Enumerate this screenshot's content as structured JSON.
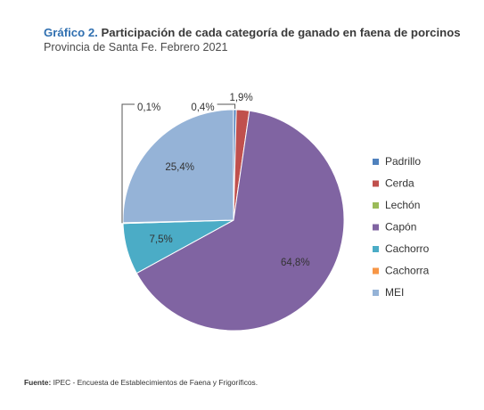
{
  "title": {
    "prefix": "Gráfico 2.",
    "text": "Participación de cada categoría de ganado en faena de porcinos",
    "subtitle": "Provincia de Santa Fe. Febrero 2021"
  },
  "source": {
    "label": "Fuente:",
    "text": "IPEC - Encuesta de Establecimientos de Faena y Frigoríficos."
  },
  "chart_data": {
    "type": "pie",
    "legend_position": "right",
    "slices": [
      {
        "name": "Padrillo",
        "value": 0.4,
        "label": "0,4%",
        "color": "#4f81bd"
      },
      {
        "name": "Cerda",
        "value": 1.9,
        "label": "1,9%",
        "color": "#c0504d"
      },
      {
        "name": "Lechón",
        "value": 0.0,
        "label": "",
        "color": "#9bbb59"
      },
      {
        "name": "Capón",
        "value": 64.8,
        "label": "64,8%",
        "color": "#8064a2"
      },
      {
        "name": "Cachorro",
        "value": 7.5,
        "label": "7,5%",
        "color": "#4bacc6"
      },
      {
        "name": "Cachorra",
        "value": 0.1,
        "label": "0,1%",
        "color": "#f79646"
      },
      {
        "name": "MEI",
        "value": 25.4,
        "label": "25,4%",
        "color": "#95b3d7"
      }
    ]
  }
}
